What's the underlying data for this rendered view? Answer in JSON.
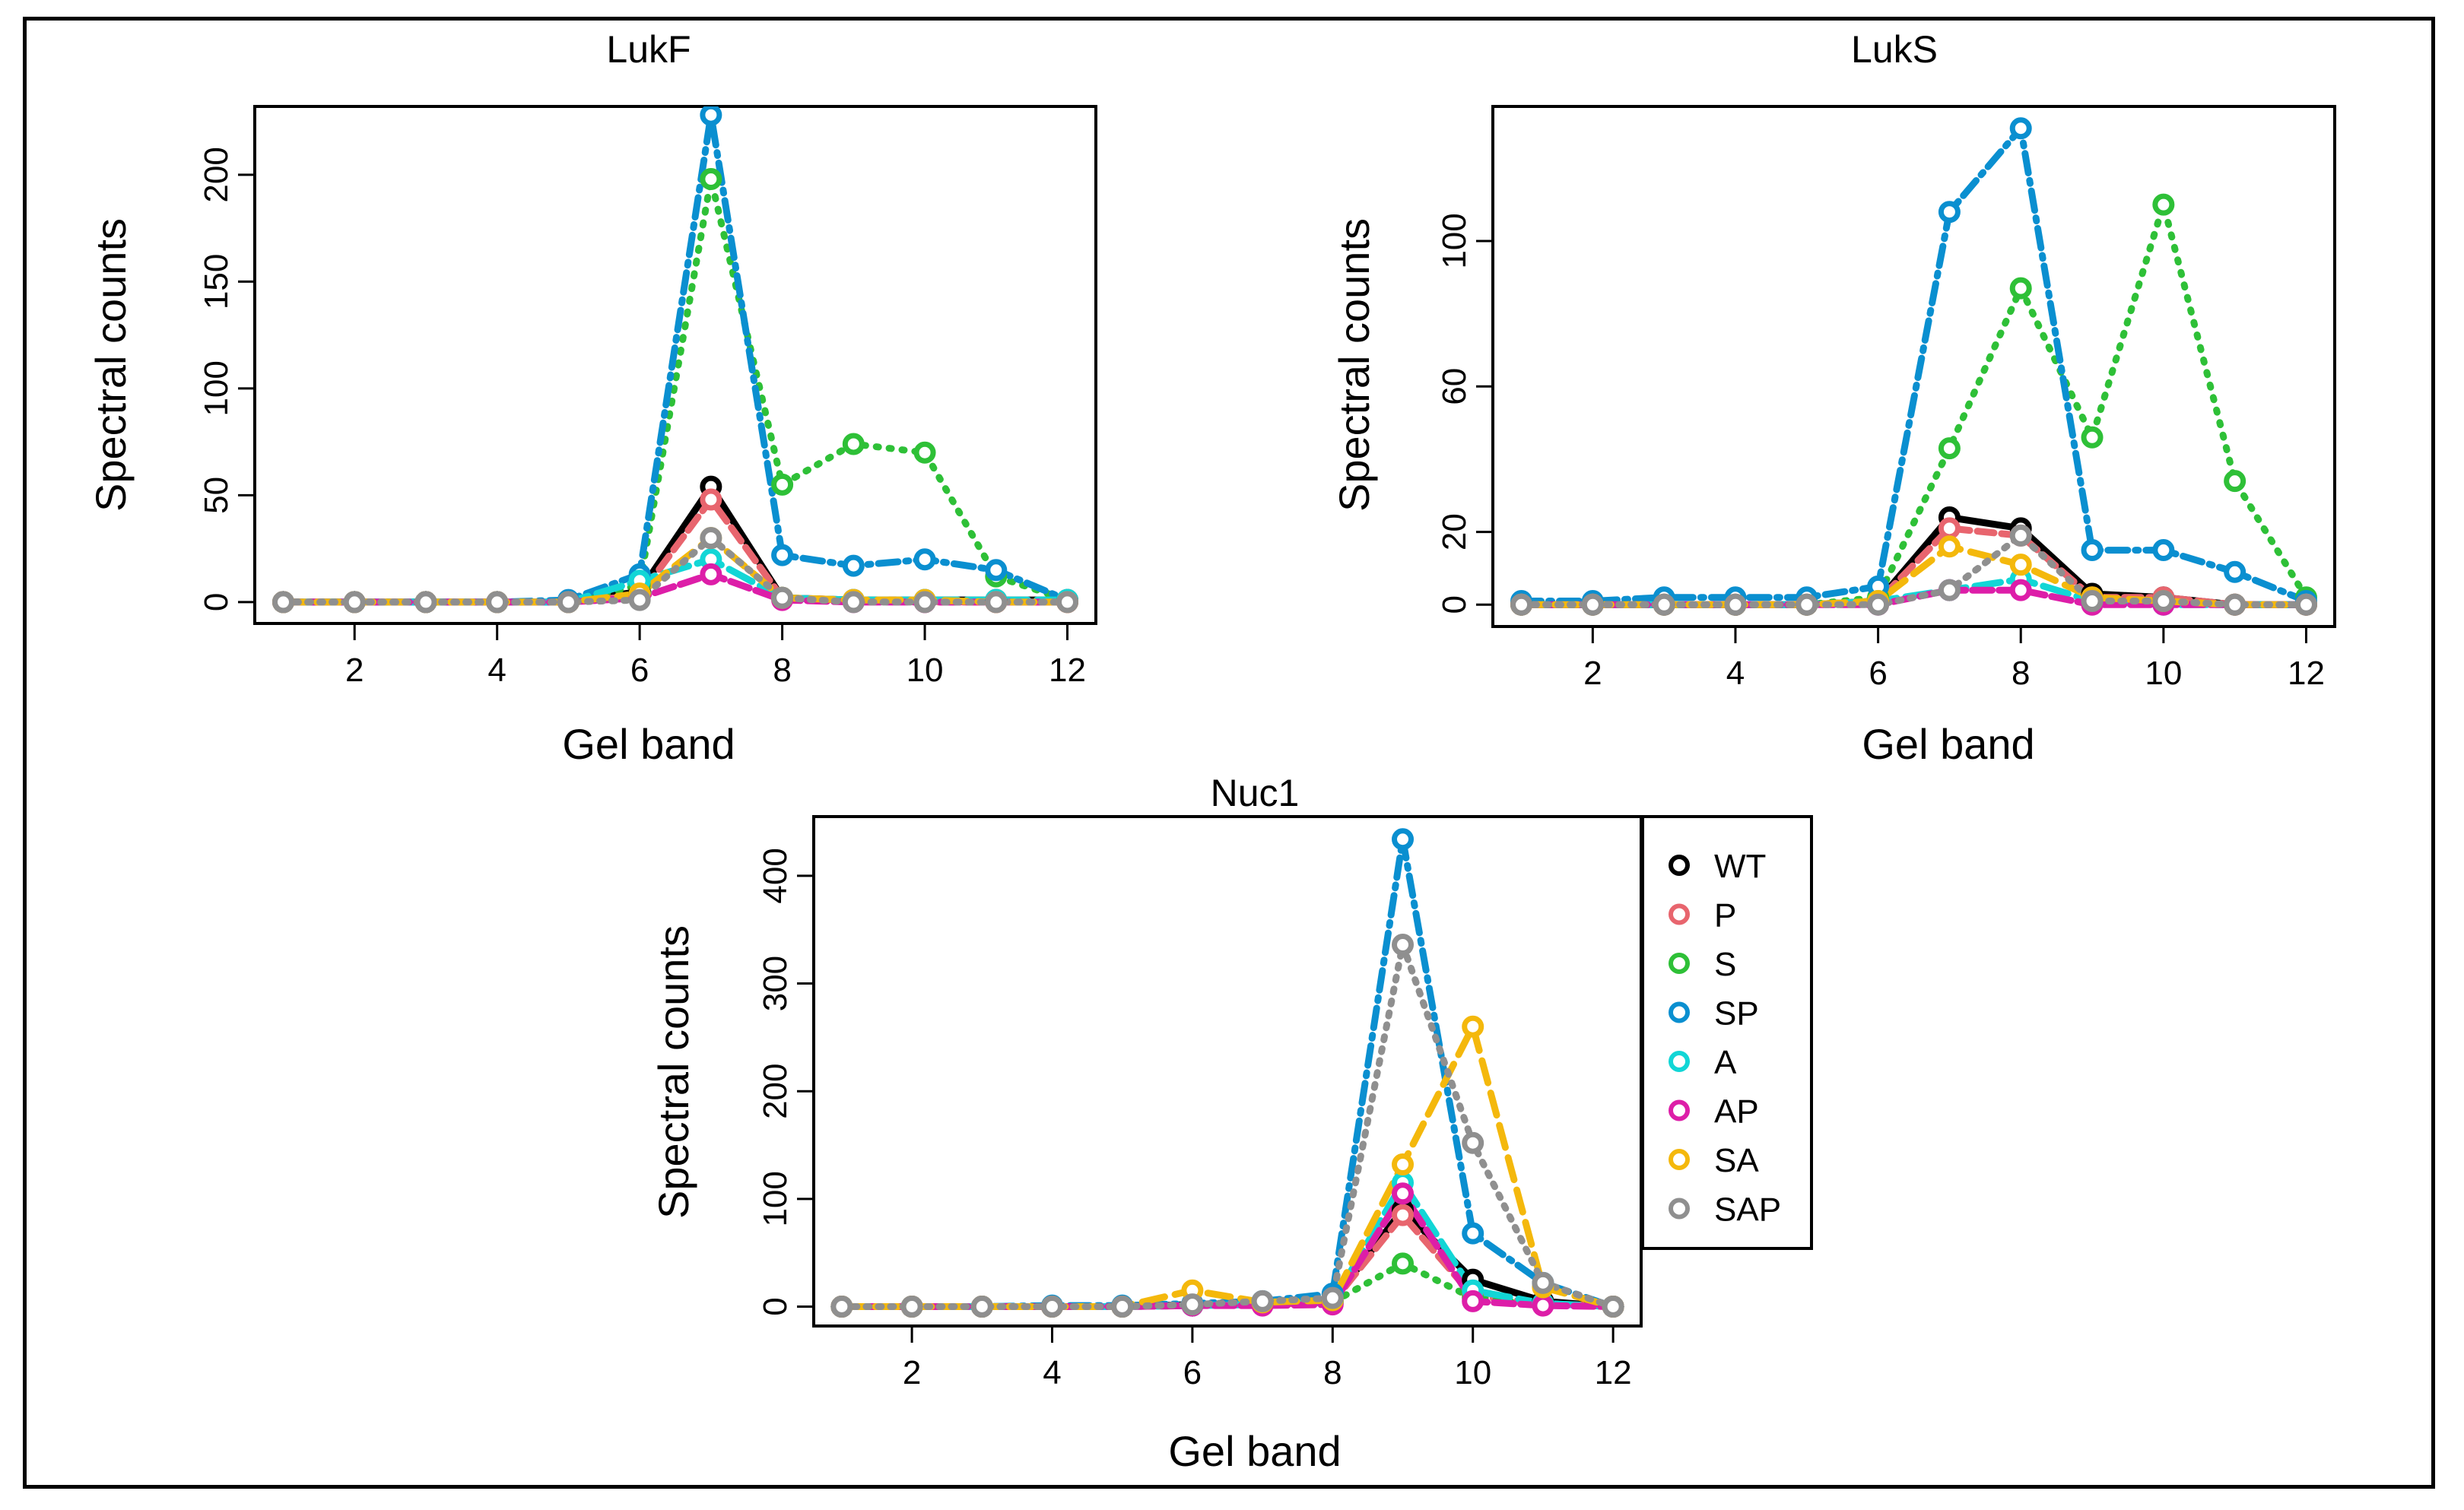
{
  "series_style": [
    {
      "name": "WT",
      "color": "#000000",
      "dash": ""
    },
    {
      "name": "P",
      "color": "#e8656e",
      "dash": "22 10"
    },
    {
      "name": "S",
      "color": "#2ec037",
      "dash": "3 14"
    },
    {
      "name": "SP",
      "color": "#0a8fd0",
      "dash": "26 10 4 10"
    },
    {
      "name": "A",
      "color": "#12d6d6",
      "dash": "34 12"
    },
    {
      "name": "AP",
      "color": "#dd1ea8",
      "dash": "26 9"
    },
    {
      "name": "SA",
      "color": "#f4b80c",
      "dash": "30 14"
    },
    {
      "name": "SAP",
      "color": "#8f8f8f",
      "dash": "4 12"
    }
  ],
  "legend": {
    "labels": [
      "WT",
      "P",
      "S",
      "SP",
      "A",
      "AP",
      "SA",
      "SAP"
    ]
  },
  "chart_data": [
    {
      "type": "line",
      "title": "LukF",
      "xlabel": "Gel band",
      "ylabel": "Spectral counts",
      "xlim": [
        0.6,
        12.4
      ],
      "ylim": [
        -10,
        232
      ],
      "xticks": [
        2,
        4,
        6,
        8,
        10,
        12
      ],
      "yticks": [
        0,
        50,
        100,
        150,
        200
      ],
      "x": [
        1,
        2,
        3,
        4,
        5,
        6,
        7,
        8,
        9,
        10,
        11,
        12
      ],
      "series": [
        {
          "name": "WT",
          "values": [
            0,
            0,
            0,
            0,
            0,
            5,
            54,
            2,
            1,
            1,
            1,
            1
          ]
        },
        {
          "name": "P",
          "values": [
            0,
            0,
            0,
            0,
            0,
            3,
            48,
            2,
            1,
            0,
            0,
            0
          ]
        },
        {
          "name": "S",
          "values": [
            0,
            0,
            0,
            0,
            0,
            8,
            198,
            55,
            74,
            70,
            12,
            1
          ]
        },
        {
          "name": "SP",
          "values": [
            0,
            0,
            0,
            0,
            1,
            13,
            228,
            22,
            17,
            20,
            15,
            1
          ]
        },
        {
          "name": "A",
          "values": [
            0,
            0,
            0,
            0,
            0,
            10,
            20,
            2,
            1,
            1,
            1,
            1
          ]
        },
        {
          "name": "AP",
          "values": [
            0,
            0,
            0,
            0,
            0,
            2,
            13,
            1,
            0,
            0,
            0,
            0
          ]
        },
        {
          "name": "SA",
          "values": [
            0,
            0,
            0,
            0,
            0,
            4,
            30,
            2,
            1,
            1,
            0,
            0
          ]
        },
        {
          "name": "SAP",
          "values": [
            0,
            0,
            0,
            0,
            0,
            1,
            30,
            2,
            0,
            0,
            0,
            0
          ]
        }
      ]
    },
    {
      "type": "line",
      "title": "LukS",
      "xlabel": "Gel band",
      "ylabel": "Spectral counts",
      "xlim": [
        0.6,
        12.4
      ],
      "ylim": [
        -6,
        137
      ],
      "xticks": [
        2,
        4,
        6,
        8,
        10,
        12
      ],
      "yticks": [
        0,
        20,
        60,
        100
      ],
      "x": [
        1,
        2,
        3,
        4,
        5,
        6,
        7,
        8,
        9,
        10,
        11,
        12
      ],
      "series": [
        {
          "name": "WT",
          "values": [
            0,
            0,
            0,
            0,
            0,
            1,
            24,
            21,
            3,
            2,
            0,
            0
          ]
        },
        {
          "name": "P",
          "values": [
            0,
            0,
            0,
            0,
            0,
            1,
            21,
            19,
            2,
            2,
            0,
            0
          ]
        },
        {
          "name": "S",
          "values": [
            0,
            0,
            0,
            0,
            0,
            2,
            43,
            87,
            46,
            110,
            34,
            2
          ]
        },
        {
          "name": "SP",
          "values": [
            1,
            1,
            2,
            2,
            2,
            5,
            108,
            131,
            15,
            15,
            9,
            1
          ]
        },
        {
          "name": "A",
          "values": [
            0,
            0,
            0,
            0,
            0,
            1,
            4,
            7,
            1,
            0,
            0,
            0
          ]
        },
        {
          "name": "AP",
          "values": [
            0,
            0,
            0,
            0,
            0,
            0,
            4,
            4,
            0,
            0,
            0,
            0
          ]
        },
        {
          "name": "SA",
          "values": [
            0,
            0,
            0,
            0,
            0,
            1,
            16,
            11,
            2,
            1,
            0,
            0
          ]
        },
        {
          "name": "SAP",
          "values": [
            0,
            0,
            0,
            0,
            0,
            0,
            4,
            19,
            1,
            1,
            0,
            0
          ]
        }
      ]
    },
    {
      "type": "line",
      "title": "Nuc1",
      "xlabel": "Gel band",
      "ylabel": "Spectral counts",
      "xlim": [
        0.6,
        12.4
      ],
      "ylim": [
        -18,
        455
      ],
      "xticks": [
        2,
        4,
        6,
        8,
        10,
        12
      ],
      "yticks": [
        0,
        100,
        200,
        300,
        400
      ],
      "x": [
        1,
        2,
        3,
        4,
        5,
        6,
        7,
        8,
        9,
        10,
        11,
        12
      ],
      "series": [
        {
          "name": "WT",
          "values": [
            0,
            0,
            0,
            0,
            0,
            2,
            3,
            5,
            90,
            25,
            5,
            0
          ]
        },
        {
          "name": "P",
          "values": [
            0,
            0,
            0,
            0,
            0,
            1,
            2,
            4,
            85,
            10,
            3,
            0
          ]
        },
        {
          "name": "S",
          "values": [
            0,
            0,
            0,
            0,
            0,
            1,
            2,
            4,
            40,
            8,
            2,
            0
          ]
        },
        {
          "name": "SP",
          "values": [
            0,
            0,
            0,
            1,
            1,
            3,
            5,
            12,
            434,
            68,
            22,
            0
          ]
        },
        {
          "name": "A",
          "values": [
            0,
            0,
            0,
            0,
            0,
            1,
            2,
            4,
            115,
            15,
            3,
            0
          ]
        },
        {
          "name": "AP",
          "values": [
            0,
            0,
            0,
            0,
            0,
            1,
            1,
            2,
            105,
            5,
            1,
            0
          ]
        },
        {
          "name": "SA",
          "values": [
            0,
            0,
            0,
            0,
            0,
            15,
            4,
            6,
            132,
            260,
            18,
            0
          ]
        },
        {
          "name": "SAP",
          "values": [
            0,
            0,
            0,
            0,
            0,
            2,
            5,
            8,
            336,
            152,
            22,
            0
          ]
        }
      ]
    }
  ]
}
